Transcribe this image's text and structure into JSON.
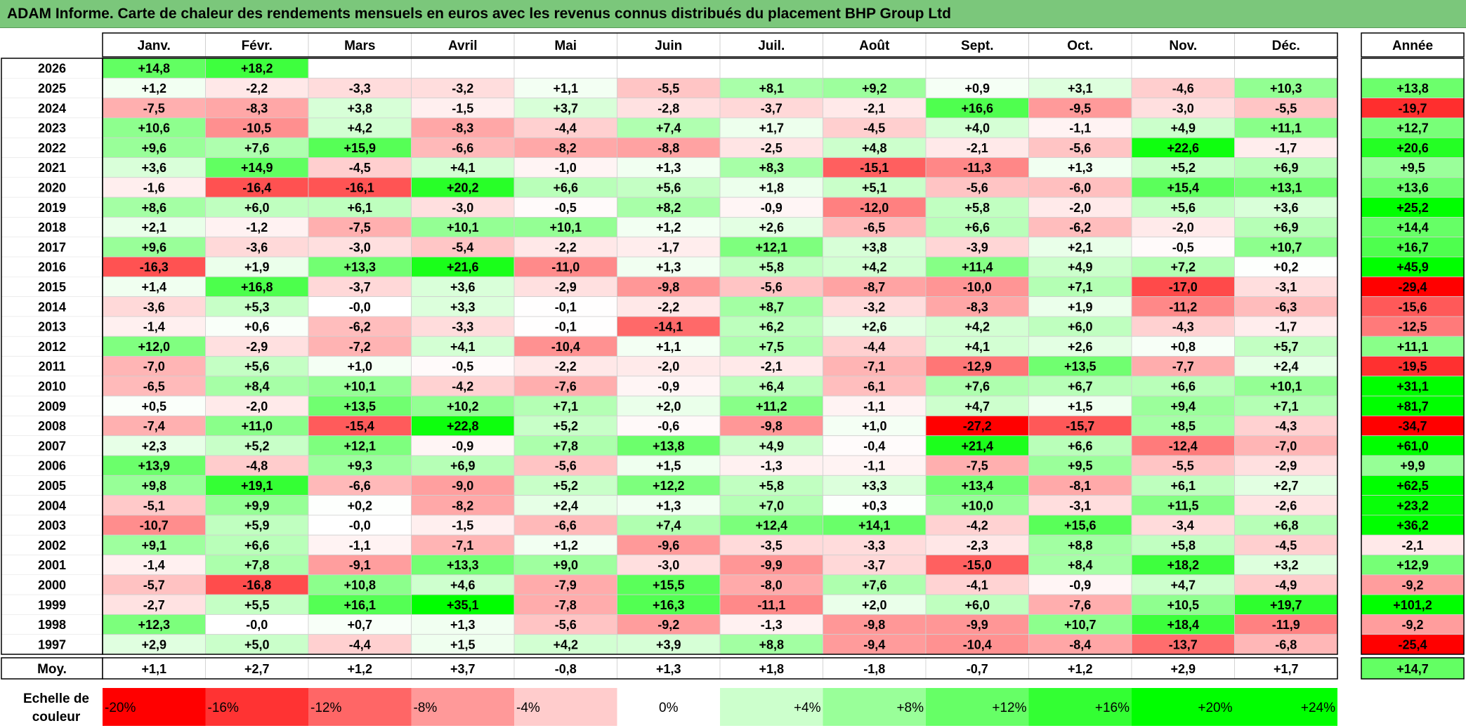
{
  "title": "ADAM Informe. Carte de chaleur des rendements mensuels en euros avec les revenus connus distribués du placement BHP Group Ltd",
  "chart_data": {
    "type": "heatmap",
    "months": [
      "Janv.",
      "Févr.",
      "Mars",
      "Avril",
      "Mai",
      "Juin",
      "Juil.",
      "Août",
      "Sept.",
      "Oct.",
      "Nov.",
      "Déc."
    ],
    "year_header": "Année",
    "rows": [
      {
        "year": "2026",
        "values": [
          14.8,
          18.2,
          null,
          null,
          null,
          null,
          null,
          null,
          null,
          null,
          null,
          null
        ],
        "annual": null
      },
      {
        "year": "2025",
        "values": [
          1.2,
          -2.2,
          -3.3,
          -3.2,
          1.1,
          -5.5,
          8.1,
          9.2,
          0.9,
          3.1,
          -4.6,
          10.3
        ],
        "annual": 13.8
      },
      {
        "year": "2024",
        "values": [
          -7.5,
          -8.3,
          3.8,
          -1.5,
          3.7,
          -2.8,
          -3.7,
          -2.1,
          16.6,
          -9.5,
          -3.0,
          -5.5
        ],
        "annual": -19.7
      },
      {
        "year": "2023",
        "values": [
          10.6,
          -10.5,
          4.2,
          -8.3,
          -4.4,
          7.4,
          1.7,
          -4.5,
          4.0,
          -1.1,
          4.9,
          11.1
        ],
        "annual": 12.7
      },
      {
        "year": "2022",
        "values": [
          9.6,
          7.6,
          15.9,
          -6.6,
          -8.2,
          -8.8,
          -2.5,
          4.8,
          -2.1,
          -5.6,
          22.6,
          -1.7
        ],
        "annual": 20.6
      },
      {
        "year": "2021",
        "values": [
          3.6,
          14.9,
          -4.5,
          4.1,
          -1.0,
          1.3,
          8.3,
          -15.1,
          -11.3,
          1.3,
          5.2,
          6.9
        ],
        "annual": 9.5
      },
      {
        "year": "2020",
        "values": [
          -1.6,
          -16.4,
          -16.1,
          20.2,
          6.6,
          5.6,
          1.8,
          5.1,
          -5.6,
          -6.0,
          15.4,
          13.1
        ],
        "annual": 13.6
      },
      {
        "year": "2019",
        "values": [
          8.6,
          6.0,
          6.1,
          -3.0,
          -0.5,
          8.2,
          -0.9,
          -12.0,
          5.8,
          -2.0,
          5.6,
          3.6
        ],
        "annual": 25.2
      },
      {
        "year": "2018",
        "values": [
          2.1,
          -1.2,
          -7.5,
          10.1,
          10.1,
          1.2,
          2.6,
          -6.5,
          6.6,
          -6.2,
          -2.0,
          6.9
        ],
        "annual": 14.4
      },
      {
        "year": "2017",
        "values": [
          9.6,
          -3.6,
          -3.0,
          -5.4,
          -2.2,
          -1.7,
          12.1,
          3.8,
          -3.9,
          2.1,
          -0.5,
          10.7
        ],
        "annual": 16.7
      },
      {
        "year": "2016",
        "values": [
          -16.3,
          1.9,
          13.3,
          21.6,
          -11.0,
          1.3,
          5.8,
          4.2,
          11.4,
          4.9,
          7.2,
          0.2
        ],
        "annual": 45.9
      },
      {
        "year": "2015",
        "values": [
          1.4,
          16.8,
          -3.7,
          3.6,
          -2.9,
          -9.8,
          -5.6,
          -8.7,
          -10.0,
          7.1,
          -17.0,
          -3.1
        ],
        "annual": -29.4
      },
      {
        "year": "2014",
        "values": [
          -3.6,
          5.3,
          -0.0,
          3.3,
          -0.1,
          -2.2,
          8.7,
          -3.2,
          -8.3,
          1.9,
          -11.2,
          -6.3
        ],
        "annual": -15.6
      },
      {
        "year": "2013",
        "values": [
          -1.4,
          0.6,
          -6.2,
          -3.3,
          -0.1,
          -14.1,
          6.2,
          2.6,
          4.2,
          6.0,
          -4.3,
          -1.7
        ],
        "annual": -12.5
      },
      {
        "year": "2012",
        "values": [
          12.0,
          -2.9,
          -7.2,
          4.1,
          -10.4,
          1.1,
          7.5,
          -4.4,
          4.1,
          2.6,
          0.8,
          5.7
        ],
        "annual": 11.1
      },
      {
        "year": "2011",
        "values": [
          -7.0,
          5.6,
          1.0,
          -0.5,
          -2.2,
          -2.0,
          -2.1,
          -7.1,
          -12.9,
          13.5,
          -7.7,
          2.4
        ],
        "annual": -19.5
      },
      {
        "year": "2010",
        "values": [
          -6.5,
          8.4,
          10.1,
          -4.2,
          -7.6,
          -0.9,
          6.4,
          -6.1,
          7.6,
          6.7,
          6.6,
          10.1
        ],
        "annual": 31.1
      },
      {
        "year": "2009",
        "values": [
          0.5,
          -2.0,
          13.5,
          10.2,
          7.1,
          2.0,
          11.2,
          -1.1,
          4.7,
          1.5,
          9.4,
          7.1
        ],
        "annual": 81.7
      },
      {
        "year": "2008",
        "values": [
          -7.4,
          11.0,
          -15.4,
          22.8,
          5.2,
          -0.6,
          -9.8,
          1.0,
          -27.2,
          -15.7,
          8.5,
          -4.3
        ],
        "annual": -34.7
      },
      {
        "year": "2007",
        "values": [
          2.3,
          5.2,
          12.1,
          -0.9,
          7.8,
          13.8,
          4.9,
          -0.4,
          21.4,
          6.6,
          -12.4,
          -7.0
        ],
        "annual": 61.0
      },
      {
        "year": "2006",
        "values": [
          13.9,
          -4.8,
          9.3,
          6.9,
          -5.6,
          1.5,
          -1.3,
          -1.1,
          -7.5,
          9.5,
          -5.5,
          -2.9
        ],
        "annual": 9.9
      },
      {
        "year": "2005",
        "values": [
          9.8,
          19.1,
          -6.6,
          -9.0,
          5.2,
          12.2,
          5.8,
          3.3,
          13.4,
          -8.1,
          6.1,
          2.7
        ],
        "annual": 62.5
      },
      {
        "year": "2004",
        "values": [
          -5.1,
          9.9,
          0.2,
          -8.2,
          2.4,
          1.3,
          7.0,
          0.3,
          10.0,
          -3.1,
          11.5,
          -2.6
        ],
        "annual": 23.2
      },
      {
        "year": "2003",
        "values": [
          -10.7,
          5.9,
          -0.0,
          -1.5,
          -6.6,
          7.4,
          12.4,
          14.1,
          -4.2,
          15.6,
          -3.4,
          6.8
        ],
        "annual": 36.2
      },
      {
        "year": "2002",
        "values": [
          9.1,
          6.6,
          -1.1,
          -7.1,
          1.2,
          -9.6,
          -3.5,
          -3.3,
          -2.3,
          8.8,
          5.8,
          -4.5
        ],
        "annual": -2.1
      },
      {
        "year": "2001",
        "values": [
          -1.4,
          7.8,
          -9.1,
          13.3,
          9.0,
          -3.0,
          -9.9,
          -3.7,
          -15.0,
          8.4,
          18.2,
          3.2
        ],
        "annual": 12.9
      },
      {
        "year": "2000",
        "values": [
          -5.7,
          -16.8,
          10.8,
          4.6,
          -7.9,
          15.5,
          -8.0,
          7.6,
          -4.1,
          -0.9,
          4.7,
          -4.9
        ],
        "annual": -9.2
      },
      {
        "year": "1999",
        "values": [
          -2.7,
          5.5,
          16.1,
          35.1,
          -7.8,
          16.3,
          -11.1,
          2.0,
          6.0,
          -7.6,
          10.5,
          19.7
        ],
        "annual": 101.2
      },
      {
        "year": "1998",
        "values": [
          12.3,
          -0.0,
          0.7,
          1.3,
          -5.6,
          -9.2,
          -1.3,
          -9.8,
          -9.9,
          10.7,
          18.4,
          -11.9
        ],
        "annual": -9.2
      },
      {
        "year": "1997",
        "values": [
          2.9,
          5.0,
          -4.4,
          1.5,
          4.2,
          3.9,
          8.8,
          -9.4,
          -10.4,
          -8.4,
          -13.7,
          -6.8
        ],
        "annual": -25.4
      }
    ],
    "average": {
      "label": "Moy.",
      "values": [
        1.1,
        2.7,
        1.2,
        3.7,
        -0.8,
        1.3,
        1.8,
        -1.8,
        -0.7,
        1.2,
        2.9,
        1.7
      ],
      "annual": 14.7
    },
    "scale": {
      "label_line1": "Echelle de",
      "label_line2": "couleur",
      "stops": [
        "-20%",
        "-16%",
        "-12%",
        "-8%",
        "-4%",
        "0%",
        "+4%",
        "+8%",
        "+12%",
        "+16%",
        "+20%",
        "+24%"
      ]
    },
    "colors": {
      "negative_max": "#ff0000",
      "neutral": "#ffffff",
      "positive_max": "#00ff00"
    }
  }
}
